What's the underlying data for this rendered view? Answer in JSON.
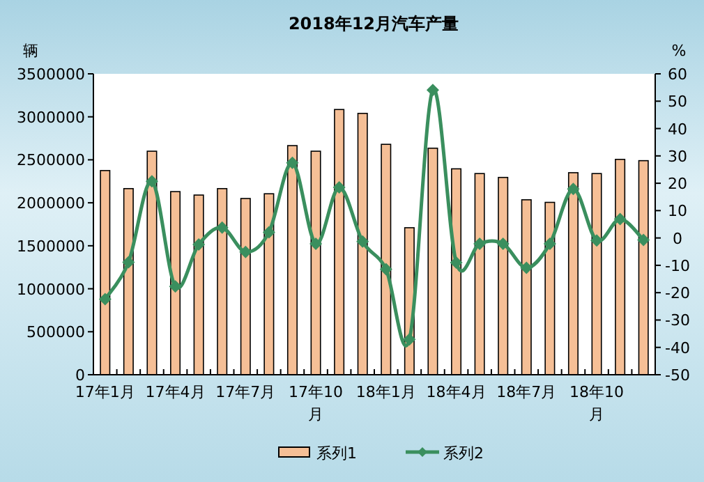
{
  "chart_data": {
    "type": "bar",
    "title": "2018年12月汽车产量",
    "ylabel": "辆",
    "y2label": "%",
    "categories": [
      "17年1月",
      null,
      null,
      "17年4月",
      null,
      null,
      "17年7月",
      null,
      null,
      "17年10月",
      null,
      null,
      "18年1月",
      null,
      null,
      "18年4月",
      null,
      null,
      "18年7月",
      null,
      null,
      "18年10月",
      null,
      null
    ],
    "series": [
      {
        "name": "系列1",
        "color": "#f5bf96",
        "values": [
          2375000,
          2165000,
          2600000,
          2130000,
          2090000,
          2165000,
          2050000,
          2105000,
          2665000,
          2600000,
          3085000,
          3040000,
          2680000,
          1710000,
          2635000,
          2395000,
          2340000,
          2295000,
          2035000,
          2005000,
          2350000,
          2340000,
          2505000,
          2490000
        ]
      },
      {
        "name": "系列2",
        "type": "line",
        "axis": "y2",
        "color": "#3a8f5e",
        "values": [
          -22.4,
          -8.9,
          20.7,
          -17.7,
          -2.4,
          3.8,
          -5.1,
          2.1,
          27.5,
          -2.1,
          18.5,
          -1.3,
          -11.4,
          -37.1,
          54.1,
          -9.0,
          -2.1,
          -2.1,
          -10.9,
          -2.1,
          17.9,
          -0.9,
          6.9,
          -0.7
        ]
      }
    ],
    "ylim": [
      0,
      3500000
    ],
    "yticks": [
      0,
      500000,
      1000000,
      1500000,
      2000000,
      2500000,
      3000000,
      3500000
    ],
    "y2lim": [
      -50,
      60
    ],
    "y2ticks": [
      -50,
      -40,
      -30,
      -20,
      -10,
      0,
      10,
      20,
      30,
      40,
      50,
      60
    ],
    "legend": "bottom",
    "marker": "diamond"
  }
}
